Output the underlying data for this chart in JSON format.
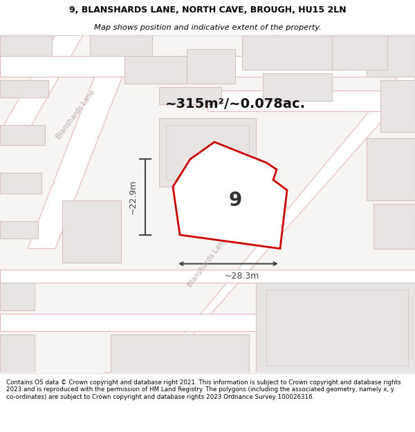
{
  "title_line1": "9, BLANSHARDS LANE, NORTH CAVE, BROUGH, HU15 2LN",
  "title_line2": "Map shows position and indicative extent of the property.",
  "area_text": "~315m²/~0.078ac.",
  "property_number": "9",
  "dim_width": "~28.3m",
  "dim_height": "~22.9m",
  "footer_text": "Contains OS data © Crown copyright and database right 2021. This information is subject to Crown copyright and database rights 2023 and is reproduced with the permission of HM Land Registry. The polygons (including the associated geometry, namely x, y co-ordinates) are subject to Crown copyright and database rights 2023 Ordnance Survey 100026316.",
  "map_bg": "#f7f4f4",
  "road_color": "#ffffff",
  "road_border_color": "#e8b0b0",
  "building_fill": "#e8e4e4",
  "building_border": "#d8c0c0",
  "block_fill": "#f0ecec",
  "highlight_fill": "#ffffff",
  "highlight_border": "#cc0000",
  "dim_color": "#444444",
  "road_label_color": "#b8a8a8",
  "title_color": "#000000",
  "footer_color": "#000000",
  "area_color": "#111111"
}
